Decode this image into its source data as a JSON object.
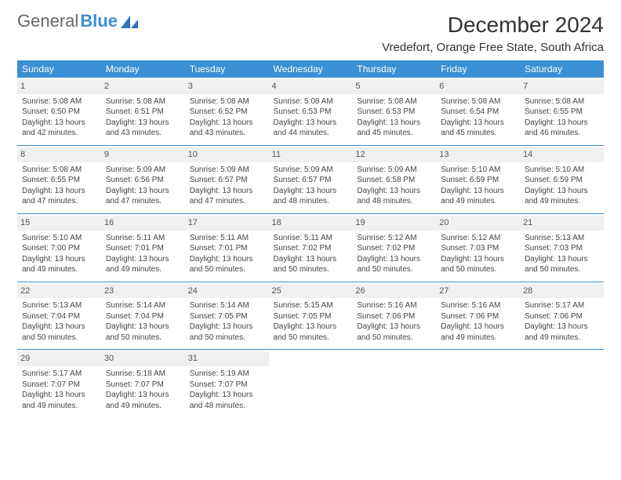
{
  "brand": {
    "part1": "General",
    "part2": "Blue"
  },
  "title": "December 2024",
  "location": "Vredefort, Orange Free State, South Africa",
  "colors": {
    "header_bg": "#3b8fd4",
    "header_text": "#ffffff",
    "daybar_bg": "#eef0f2",
    "row_border": "#3b8fd4",
    "text": "#444444"
  },
  "weekdays": [
    "Sunday",
    "Monday",
    "Tuesday",
    "Wednesday",
    "Thursday",
    "Friday",
    "Saturday"
  ],
  "weeks": [
    [
      {
        "n": "1",
        "r": "5:08 AM",
        "s": "6:50 PM",
        "d": "13 hours and 42 minutes."
      },
      {
        "n": "2",
        "r": "5:08 AM",
        "s": "6:51 PM",
        "d": "13 hours and 43 minutes."
      },
      {
        "n": "3",
        "r": "5:08 AM",
        "s": "6:52 PM",
        "d": "13 hours and 43 minutes."
      },
      {
        "n": "4",
        "r": "5:08 AM",
        "s": "6:53 PM",
        "d": "13 hours and 44 minutes."
      },
      {
        "n": "5",
        "r": "5:08 AM",
        "s": "6:53 PM",
        "d": "13 hours and 45 minutes."
      },
      {
        "n": "6",
        "r": "5:08 AM",
        "s": "6:54 PM",
        "d": "13 hours and 45 minutes."
      },
      {
        "n": "7",
        "r": "5:08 AM",
        "s": "6:55 PM",
        "d": "13 hours and 46 minutes."
      }
    ],
    [
      {
        "n": "8",
        "r": "5:08 AM",
        "s": "6:55 PM",
        "d": "13 hours and 47 minutes."
      },
      {
        "n": "9",
        "r": "5:09 AM",
        "s": "6:56 PM",
        "d": "13 hours and 47 minutes."
      },
      {
        "n": "10",
        "r": "5:09 AM",
        "s": "6:57 PM",
        "d": "13 hours and 47 minutes."
      },
      {
        "n": "11",
        "r": "5:09 AM",
        "s": "6:57 PM",
        "d": "13 hours and 48 minutes."
      },
      {
        "n": "12",
        "r": "5:09 AM",
        "s": "6:58 PM",
        "d": "13 hours and 48 minutes."
      },
      {
        "n": "13",
        "r": "5:10 AM",
        "s": "6:59 PM",
        "d": "13 hours and 49 minutes."
      },
      {
        "n": "14",
        "r": "5:10 AM",
        "s": "6:59 PM",
        "d": "13 hours and 49 minutes."
      }
    ],
    [
      {
        "n": "15",
        "r": "5:10 AM",
        "s": "7:00 PM",
        "d": "13 hours and 49 minutes."
      },
      {
        "n": "16",
        "r": "5:11 AM",
        "s": "7:01 PM",
        "d": "13 hours and 49 minutes."
      },
      {
        "n": "17",
        "r": "5:11 AM",
        "s": "7:01 PM",
        "d": "13 hours and 50 minutes."
      },
      {
        "n": "18",
        "r": "5:11 AM",
        "s": "7:02 PM",
        "d": "13 hours and 50 minutes."
      },
      {
        "n": "19",
        "r": "5:12 AM",
        "s": "7:02 PM",
        "d": "13 hours and 50 minutes."
      },
      {
        "n": "20",
        "r": "5:12 AM",
        "s": "7:03 PM",
        "d": "13 hours and 50 minutes."
      },
      {
        "n": "21",
        "r": "5:13 AM",
        "s": "7:03 PM",
        "d": "13 hours and 50 minutes."
      }
    ],
    [
      {
        "n": "22",
        "r": "5:13 AM",
        "s": "7:04 PM",
        "d": "13 hours and 50 minutes."
      },
      {
        "n": "23",
        "r": "5:14 AM",
        "s": "7:04 PM",
        "d": "13 hours and 50 minutes."
      },
      {
        "n": "24",
        "r": "5:14 AM",
        "s": "7:05 PM",
        "d": "13 hours and 50 minutes."
      },
      {
        "n": "25",
        "r": "5:15 AM",
        "s": "7:05 PM",
        "d": "13 hours and 50 minutes."
      },
      {
        "n": "26",
        "r": "5:16 AM",
        "s": "7:06 PM",
        "d": "13 hours and 50 minutes."
      },
      {
        "n": "27",
        "r": "5:16 AM",
        "s": "7:06 PM",
        "d": "13 hours and 49 minutes."
      },
      {
        "n": "28",
        "r": "5:17 AM",
        "s": "7:06 PM",
        "d": "13 hours and 49 minutes."
      }
    ],
    [
      {
        "n": "29",
        "r": "5:17 AM",
        "s": "7:07 PM",
        "d": "13 hours and 49 minutes."
      },
      {
        "n": "30",
        "r": "5:18 AM",
        "s": "7:07 PM",
        "d": "13 hours and 49 minutes."
      },
      {
        "n": "31",
        "r": "5:19 AM",
        "s": "7:07 PM",
        "d": "13 hours and 48 minutes."
      },
      null,
      null,
      null,
      null
    ]
  ],
  "labels": {
    "sunrise": "Sunrise:",
    "sunset": "Sunset:",
    "daylight": "Daylight:"
  }
}
